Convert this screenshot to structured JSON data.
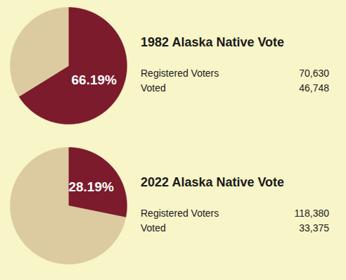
{
  "chart_data": [
    {
      "type": "pie",
      "title": "1982 Alaska Native Vote",
      "values": [
        66.19,
        33.81
      ],
      "value_labels": [
        "66.19%",
        null
      ],
      "colors": [
        "#7b1b2c",
        "#dccaa0"
      ],
      "data_labels": true,
      "annotations": [
        [
          "Registered Voters",
          "70,630"
        ],
        [
          "Voted",
          "46,748"
        ]
      ]
    },
    {
      "type": "pie",
      "title": "2022 Alaska Native Vote",
      "values": [
        28.19,
        71.81
      ],
      "value_labels": [
        "28.19%",
        null
      ],
      "colors": [
        "#7b1b2c",
        "#dccaa0"
      ],
      "data_labels": true,
      "annotations": [
        [
          "Registered Voters",
          "118,380"
        ],
        [
          "Voted",
          "33,375"
        ]
      ]
    }
  ]
}
